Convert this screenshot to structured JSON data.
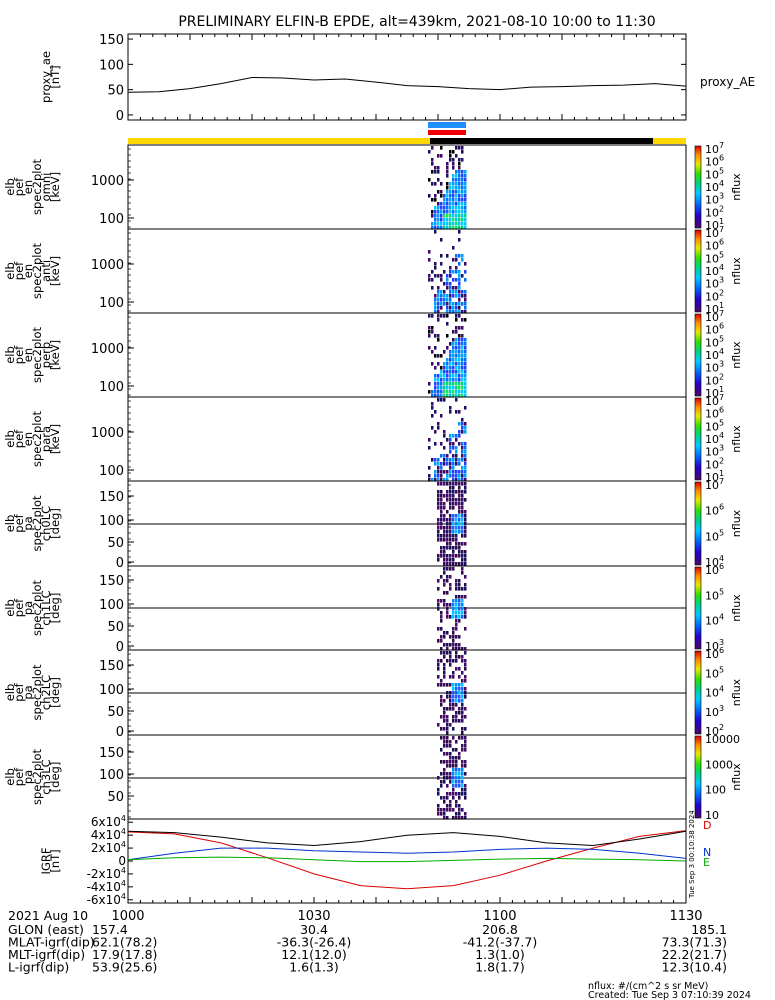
{
  "title": "PRELIMINARY ELFIN-B EPDE, alt=439km, 2021-08-10 10:00 to 11:30",
  "time_ticks": [
    "1000",
    "1030",
    "1100",
    "1130"
  ],
  "footer": {
    "date": "2021 Aug 10",
    "rows": [
      {
        "label": "GLON (east)",
        "vals": [
          "157.4",
          "30.4",
          "206.8",
          "185.1"
        ]
      },
      {
        "label": "MLAT-igrf(dip)",
        "vals": [
          "62.1(78.2)",
          "-36.3(-26.4)",
          "-41.2(-37.7)",
          "73.3(71.3)"
        ]
      },
      {
        "label": "MLT-igrf(dip)",
        "vals": [
          "17.9(17.8)",
          "12.1(12.0)",
          "1.3(1.0)",
          "22.2(21.7)"
        ]
      },
      {
        "label": "L-igrf(dip)",
        "vals": [
          "53.9(25.6)",
          "1.6(1.3)",
          "1.8(1.7)",
          "12.3(10.4)"
        ]
      }
    ],
    "units_note": "nflux: #/(cm^2 s sr MeV)",
    "created": "Created: Tue Sep  3 07:10:39 2024",
    "side_stamp": "Tue Sep  3 00:10:38 2024"
  },
  "chart_data": [
    {
      "type": "line",
      "id": "proxy_ae",
      "ylabel": "proxy_ae\n[nT]",
      "legend": "proxy_AE",
      "yticks": [
        "0",
        "50",
        "100",
        "150"
      ],
      "ylim": [
        -10,
        160
      ],
      "x_minutes": [
        0,
        5,
        10,
        15,
        20,
        25,
        30,
        35,
        40,
        45,
        50,
        55,
        60,
        65,
        70,
        75,
        80,
        85,
        90
      ],
      "values": [
        45,
        46,
        52,
        62,
        74,
        73,
        69,
        71,
        65,
        58,
        56,
        52,
        50,
        55,
        56,
        58,
        59,
        62,
        57
      ]
    },
    {
      "type": "heatmap",
      "id": "omni",
      "ylabel": "elb\npef\nen\nspec2plot\nomni\n[keV]",
      "yticks": [
        "100",
        "1000"
      ],
      "zlabel": "nflux",
      "cbar_labels": [
        "10^1",
        "10^2",
        "10^3",
        "10^4",
        "10^5",
        "10^6",
        "10^7"
      ]
    },
    {
      "type": "heatmap",
      "id": "anti",
      "ylabel": "elb\npef\nen\nspec2plot\nanti\n[keV]",
      "yticks": [
        "100",
        "1000"
      ],
      "zlabel": "nflux",
      "cbar_labels": [
        "10^1",
        "10^2",
        "10^3",
        "10^4",
        "10^5",
        "10^6",
        "10^7"
      ]
    },
    {
      "type": "heatmap",
      "id": "perp",
      "ylabel": "elb\npef\nen\nspec2plot\nperp\n[keV]",
      "yticks": [
        "100",
        "1000"
      ],
      "zlabel": "nflux",
      "cbar_labels": [
        "10^1",
        "10^2",
        "10^3",
        "10^4",
        "10^5",
        "10^6",
        "10^7"
      ]
    },
    {
      "type": "heatmap",
      "id": "para",
      "ylabel": "elb\npef\nen\nspec2plot\npara\n[keV]",
      "yticks": [
        "100",
        "1000"
      ],
      "zlabel": "nflux",
      "cbar_labels": [
        "10^1",
        "10^2",
        "10^3",
        "10^4",
        "10^5",
        "10^6",
        "10^7"
      ]
    },
    {
      "type": "heatmap",
      "id": "ch0LC",
      "ylabel": "elb\npef\npa\nspec2plot\nch0LC\n[deg]",
      "yticks": [
        "0",
        "50",
        "100",
        "150"
      ],
      "zlabel": "nflux",
      "cbar_labels": [
        "10^4",
        "10^5",
        "10^6",
        "10^7"
      ]
    },
    {
      "type": "heatmap",
      "id": "ch1LC",
      "ylabel": "elb\npef\npa\nspec2plot\nch1LC\n[deg]",
      "yticks": [
        "0",
        "50",
        "100",
        "150"
      ],
      "zlabel": "nflux",
      "cbar_labels": [
        "10^3",
        "10^4",
        "10^5",
        "10^6"
      ]
    },
    {
      "type": "heatmap",
      "id": "ch2LC",
      "ylabel": "elb\npef\npa\nspec2plot\nch2LC\n[deg]",
      "yticks": [
        "0",
        "50",
        "100",
        "150"
      ],
      "zlabel": "nflux",
      "cbar_labels": [
        "10^2",
        "10^3",
        "10^4",
        "10^5",
        "10^6"
      ]
    },
    {
      "type": "heatmap",
      "id": "ch3LC",
      "ylabel": "elb\npef\npa\nspec2plot\nch3LC\n[deg]",
      "yticks": [
        "50",
        "100",
        "150"
      ],
      "zlabel": "nflux",
      "cbar_labels": [
        "10",
        "100",
        "1000",
        "10000"
      ]
    },
    {
      "type": "line",
      "id": "igrf",
      "ylabel": "IGRF\n[nT]",
      "yticks": [
        "-6x10^4",
        "-4x10^4",
        "-2x10^4",
        "0",
        "2x10^4",
        "4x10^4",
        "6x10^4"
      ],
      "ylim": [
        -65000,
        65000
      ],
      "x_minutes": [
        0,
        7.5,
        15,
        22.5,
        30,
        37.5,
        45,
        52.5,
        60,
        67.5,
        75,
        82.5,
        90
      ],
      "series": [
        {
          "name": "D",
          "color": "#dd0000",
          "values": [
            45000,
            42000,
            28000,
            5000,
            -20000,
            -38000,
            -43000,
            -38000,
            -22000,
            0,
            20000,
            38000,
            47000
          ]
        },
        {
          "name": "N",
          "color": "#0033cc",
          "values": [
            2000,
            12000,
            20000,
            20000,
            16000,
            14000,
            12000,
            14000,
            18000,
            20000,
            18000,
            12000,
            4000
          ]
        },
        {
          "name": "E",
          "color": "#00aa00",
          "values": [
            2000,
            5000,
            6000,
            5000,
            2000,
            -1000,
            -1000,
            1000,
            3000,
            4000,
            3000,
            2000,
            0
          ]
        },
        {
          "name": "",
          "color": "#000000",
          "values": [
            46000,
            44000,
            37000,
            28000,
            24000,
            30000,
            40000,
            44000,
            38000,
            28000,
            24000,
            34000,
            46000
          ]
        }
      ]
    }
  ]
}
